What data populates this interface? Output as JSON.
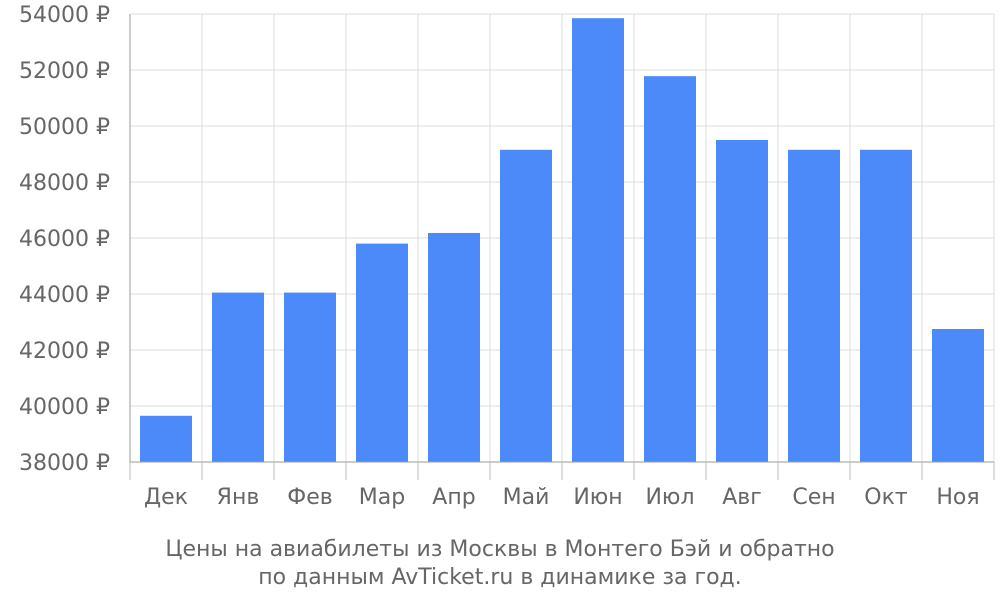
{
  "chart_data": {
    "type": "bar",
    "categories": [
      "Дек",
      "Янв",
      "Фев",
      "Мар",
      "Апр",
      "Май",
      "Июн",
      "Июл",
      "Авг",
      "Сен",
      "Окт",
      "Ноя"
    ],
    "values": [
      39650,
      44050,
      44050,
      45800,
      46180,
      49150,
      53850,
      51780,
      49500,
      49150,
      49150,
      42750
    ],
    "y_ticks": [
      "38000 ₽",
      "40000 ₽",
      "42000 ₽",
      "44000 ₽",
      "46000 ₽",
      "48000 ₽",
      "50000 ₽",
      "52000 ₽",
      "54000 ₽"
    ],
    "ylim": [
      38000,
      54000
    ],
    "y_step": 2000,
    "grid": true,
    "bar_color": "#4d8af9",
    "grid_color": "#dddddd",
    "text_color": "#666666",
    "caption_lines": [
      "Цены на авиабилеты из Москвы в Монтего Бэй и обратно",
      "по данным AvTicket.ru в динамике за год."
    ]
  }
}
